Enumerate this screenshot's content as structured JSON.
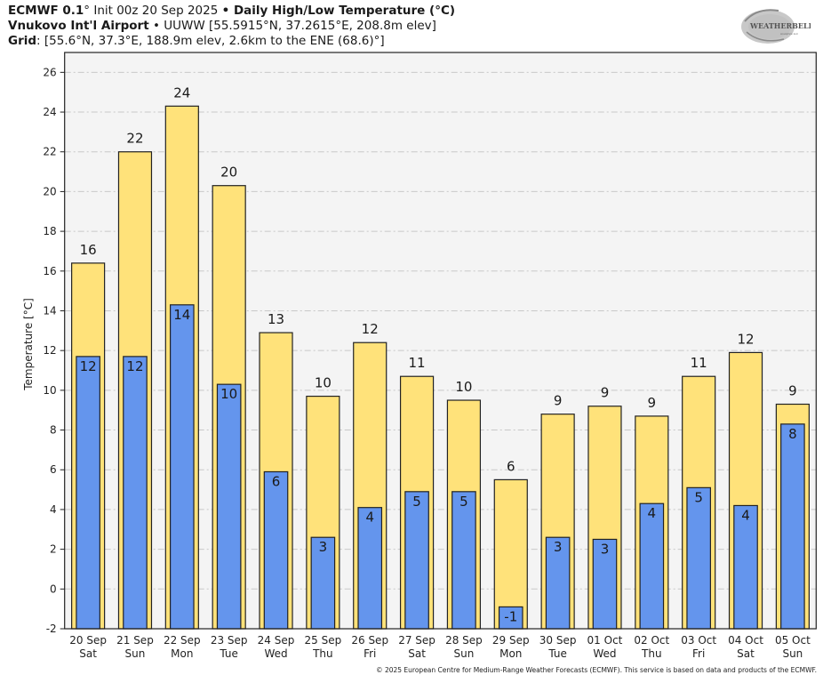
{
  "header": {
    "line1": {
      "model": "ECMWF 0.1",
      "model_suffix": "°",
      "init": " Init 00z 20 Sep 2025 ",
      "bullet": "•",
      "product": " Daily High/Low Temperature (°C)"
    },
    "line2": {
      "station": "Vnukovo Int'l Airport",
      "bullet": " • ",
      "details": "UUWW [55.5915°N, 37.2615°E, 208.8m elev]"
    },
    "line3": {
      "label": "Grid",
      "details": ": [55.6°N, 37.3°E, 188.9m elev, 2.6km to the ENE (68.6)°]"
    }
  },
  "logo": {
    "text_main": "WEATHERBELL",
    "text_sub": "Analytics LLC",
    "icon": "swirl-logo-icon"
  },
  "footer": "© 2025 European Centre for Medium-Range Weather Forecasts (ECMWF). This service is based on data and products of the ECMWF.",
  "colors": {
    "high": "#FFE27A",
    "low": "#6495ED",
    "plot_bg": "#F4F4F4",
    "grid": "#C8C8C8",
    "edge": "#222222"
  },
  "chart_data": {
    "type": "bar",
    "title": "Daily High/Low Temperature (°C)",
    "xlabel": "",
    "ylabel": "Temperature [°C]",
    "ylim": [
      -2,
      27
    ],
    "yticks": [
      -2,
      0,
      2,
      4,
      6,
      8,
      10,
      12,
      14,
      16,
      18,
      20,
      22,
      24,
      26
    ],
    "grid": true,
    "categories": [
      {
        "date": "20 Sep",
        "day": "Sat"
      },
      {
        "date": "21 Sep",
        "day": "Sun"
      },
      {
        "date": "22 Sep",
        "day": "Mon"
      },
      {
        "date": "23 Sep",
        "day": "Tue"
      },
      {
        "date": "24 Sep",
        "day": "Wed"
      },
      {
        "date": "25 Sep",
        "day": "Thu"
      },
      {
        "date": "26 Sep",
        "day": "Fri"
      },
      {
        "date": "27 Sep",
        "day": "Sat"
      },
      {
        "date": "28 Sep",
        "day": "Sun"
      },
      {
        "date": "29 Sep",
        "day": "Mon"
      },
      {
        "date": "30 Sep",
        "day": "Tue"
      },
      {
        "date": "01 Oct",
        "day": "Wed"
      },
      {
        "date": "02 Oct",
        "day": "Thu"
      },
      {
        "date": "03 Oct",
        "day": "Fri"
      },
      {
        "date": "04 Oct",
        "day": "Sat"
      },
      {
        "date": "05 Oct",
        "day": "Sun"
      }
    ],
    "series": [
      {
        "name": "High",
        "values": [
          16.4,
          22.0,
          24.3,
          20.3,
          12.9,
          9.7,
          12.4,
          10.7,
          9.5,
          5.5,
          8.8,
          9.2,
          8.7,
          10.7,
          11.9,
          9.3
        ],
        "labels": [
          "16",
          "22",
          "24",
          "20",
          "13",
          "10",
          "12",
          "11",
          "10",
          "6",
          "9",
          "9",
          "9",
          "11",
          "12",
          "9"
        ]
      },
      {
        "name": "Low",
        "values": [
          11.7,
          11.7,
          14.3,
          10.3,
          5.9,
          2.6,
          4.1,
          4.9,
          4.9,
          -0.9,
          2.6,
          2.5,
          4.3,
          5.1,
          4.2,
          8.3
        ],
        "labels": [
          "12",
          "12",
          "14",
          "10",
          "6",
          "3",
          "4",
          "5",
          "5",
          "-1",
          "3",
          "3",
          "4",
          "5",
          "4",
          "8"
        ]
      }
    ]
  }
}
